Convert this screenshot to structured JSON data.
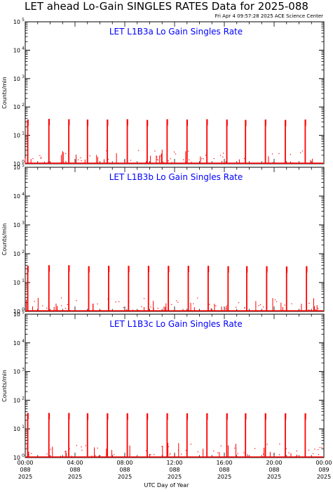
{
  "page": {
    "title": "LET ahead Lo-Gain SINGLES RATES Data for 2025-088",
    "timestamp": "Fri Apr  4 09:57:28 2025 ACE Science Center",
    "xlabel": "UTC Day of Year"
  },
  "colors": {
    "data": "#ff0000",
    "panel_title": "#0000ff",
    "axis": "#000000"
  },
  "chart_data": [
    {
      "type": "line",
      "title": "LET L1B3a Lo Gain Singles Rate",
      "ylabel": "Counts/min",
      "yscale": "log",
      "ylim": [
        1,
        100000
      ],
      "xlim": [
        0,
        24
      ],
      "y_ticks": [
        {
          "base": "10",
          "exp": "0"
        },
        {
          "base": "10",
          "exp": "1"
        },
        {
          "base": "10",
          "exp": "2"
        },
        {
          "base": "10",
          "exp": "3"
        },
        {
          "base": "10",
          "exp": "4"
        },
        {
          "base": "10",
          "exp": "5"
        }
      ],
      "spikes": [
        {
          "x": 0.2,
          "y": 36
        },
        {
          "x": 1.9,
          "y": 38
        },
        {
          "x": 3.5,
          "y": 37
        },
        {
          "x": 5.0,
          "y": 36
        },
        {
          "x": 6.6,
          "y": 36
        },
        {
          "x": 8.2,
          "y": 37
        },
        {
          "x": 9.8,
          "y": 35
        },
        {
          "x": 11.4,
          "y": 37
        },
        {
          "x": 13.0,
          "y": 36
        },
        {
          "x": 14.6,
          "y": 37
        },
        {
          "x": 16.2,
          "y": 36
        },
        {
          "x": 17.7,
          "y": 35
        },
        {
          "x": 19.3,
          "y": 36
        },
        {
          "x": 20.9,
          "y": 35
        },
        {
          "x": 22.5,
          "y": 36
        }
      ]
    },
    {
      "type": "line",
      "title": "LET L1B3b Lo Gain Singles Rate",
      "ylabel": "Counts/min",
      "yscale": "log",
      "ylim": [
        1,
        100000
      ],
      "xlim": [
        0,
        24
      ],
      "y_ticks": [
        {
          "base": "10",
          "exp": "0"
        },
        {
          "base": "10",
          "exp": "1"
        },
        {
          "base": "10",
          "exp": "2"
        },
        {
          "base": "10",
          "exp": "3"
        },
        {
          "base": "10",
          "exp": "4"
        },
        {
          "base": "10",
          "exp": "5"
        }
      ],
      "spikes": [
        {
          "x": 0.2,
          "y": 38
        },
        {
          "x": 1.9,
          "y": 40
        },
        {
          "x": 3.5,
          "y": 40
        },
        {
          "x": 5.1,
          "y": 37
        },
        {
          "x": 6.7,
          "y": 38
        },
        {
          "x": 8.3,
          "y": 38
        },
        {
          "x": 9.9,
          "y": 38
        },
        {
          "x": 11.5,
          "y": 38
        },
        {
          "x": 13.1,
          "y": 38
        },
        {
          "x": 14.7,
          "y": 38
        },
        {
          "x": 16.3,
          "y": 37
        },
        {
          "x": 17.8,
          "y": 37
        },
        {
          "x": 19.4,
          "y": 37
        },
        {
          "x": 21.0,
          "y": 36
        },
        {
          "x": 22.6,
          "y": 37
        }
      ]
    },
    {
      "type": "line",
      "title": "LET L1B3c Lo Gain Singles Rate",
      "ylabel": "Counts/min",
      "yscale": "log",
      "ylim": [
        1,
        100000
      ],
      "xlim": [
        0,
        24
      ],
      "y_ticks": [
        {
          "base": "10",
          "exp": "0"
        },
        {
          "base": "10",
          "exp": "1"
        },
        {
          "base": "10",
          "exp": "2"
        },
        {
          "base": "10",
          "exp": "3"
        },
        {
          "base": "10",
          "exp": "4"
        },
        {
          "base": "10",
          "exp": "5"
        }
      ],
      "x_ticks": [
        {
          "time": "00:00",
          "doy": "088",
          "year": "2025"
        },
        {
          "time": "04:00",
          "doy": "088",
          "year": "2025"
        },
        {
          "time": "08:00",
          "doy": "088",
          "year": "2025"
        },
        {
          "time": "12:00",
          "doy": "088",
          "year": "2025"
        },
        {
          "time": "16:00",
          "doy": "088",
          "year": "2025"
        },
        {
          "time": "20:00",
          "doy": "088",
          "year": "2025"
        },
        {
          "time": "00:00",
          "doy": "089",
          "year": "2025"
        }
      ],
      "spikes": [
        {
          "x": 0.2,
          "y": 36
        },
        {
          "x": 1.9,
          "y": 36
        },
        {
          "x": 3.5,
          "y": 36
        },
        {
          "x": 5.0,
          "y": 35
        },
        {
          "x": 6.6,
          "y": 35
        },
        {
          "x": 8.2,
          "y": 35
        },
        {
          "x": 9.8,
          "y": 35
        },
        {
          "x": 11.4,
          "y": 35
        },
        {
          "x": 13.0,
          "y": 35
        },
        {
          "x": 14.6,
          "y": 35
        },
        {
          "x": 16.2,
          "y": 35
        },
        {
          "x": 17.7,
          "y": 35
        },
        {
          "x": 19.3,
          "y": 35
        },
        {
          "x": 20.9,
          "y": 35
        },
        {
          "x": 22.5,
          "y": 35
        }
      ]
    }
  ]
}
